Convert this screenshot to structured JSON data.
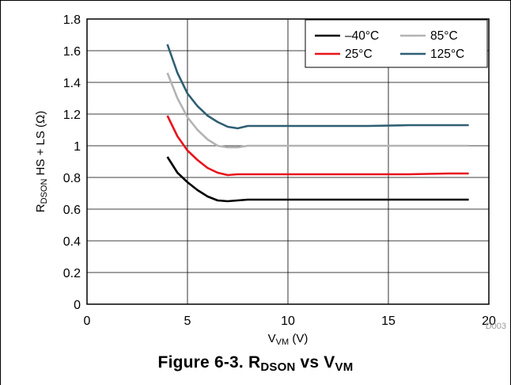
{
  "caption": {
    "prefix": "Figure 6-3. R",
    "sub1": "DSON",
    "mid": " vs V",
    "sub2": "VM"
  },
  "chart_data": {
    "type": "line",
    "xlabel": {
      "main": "V",
      "sub": "VM",
      "unit": " (V)"
    },
    "ylabel": {
      "main": "R",
      "sub": "DSON",
      "rest": " HS + LS (Ω)"
    },
    "xlim": [
      0,
      20
    ],
    "ylim": [
      0,
      1.8
    ],
    "xticks": [
      0,
      5,
      10,
      15,
      20
    ],
    "yticks": [
      0,
      0.2,
      0.4,
      0.6,
      0.8,
      1,
      1.2,
      1.4,
      1.6,
      1.8
    ],
    "ytick_labels": [
      "0",
      "0.2",
      "0.4",
      "0.6",
      "0.8",
      "1",
      "1.2",
      "1.4",
      "1.6",
      "1.8"
    ],
    "xtick_labels": [
      "0",
      "5",
      "10",
      "15",
      "20"
    ],
    "grid": true,
    "legend_position": "top-right",
    "code_label": "D003",
    "series": [
      {
        "name": "–40°C",
        "color": "#000000",
        "x": [
          4,
          4.5,
          5,
          5.5,
          6,
          6.5,
          7,
          7.5,
          8,
          10,
          12,
          14,
          16,
          18,
          19
        ],
        "y": [
          0.93,
          0.83,
          0.77,
          0.72,
          0.68,
          0.655,
          0.65,
          0.655,
          0.66,
          0.66,
          0.66,
          0.66,
          0.66,
          0.66,
          0.66
        ]
      },
      {
        "name": "25°C",
        "color": "#e8141c",
        "x": [
          4,
          4.5,
          5,
          5.5,
          6,
          6.5,
          7,
          7.5,
          8,
          10,
          12,
          14,
          16,
          18,
          19
        ],
        "y": [
          1.19,
          1.06,
          0.97,
          0.91,
          0.86,
          0.83,
          0.815,
          0.82,
          0.82,
          0.82,
          0.82,
          0.82,
          0.82,
          0.825,
          0.825
        ]
      },
      {
        "name": "85°C",
        "color": "#b3b3b3",
        "x": [
          4,
          4.5,
          5,
          5.5,
          6,
          6.5,
          7,
          7.5,
          8,
          10,
          12,
          14,
          16,
          18,
          19
        ],
        "y": [
          1.46,
          1.3,
          1.18,
          1.1,
          1.04,
          1.0,
          0.99,
          0.99,
          1.0,
          1.0,
          1.0,
          1.0,
          1.0,
          1.0,
          1.0
        ]
      },
      {
        "name": "125°C",
        "color": "#2f5f73",
        "x": [
          4,
          4.5,
          5,
          5.5,
          6,
          6.5,
          7,
          7.5,
          8,
          10,
          12,
          14,
          16,
          18,
          19
        ],
        "y": [
          1.64,
          1.46,
          1.33,
          1.25,
          1.19,
          1.15,
          1.12,
          1.11,
          1.125,
          1.125,
          1.125,
          1.125,
          1.13,
          1.13,
          1.13
        ]
      }
    ]
  }
}
